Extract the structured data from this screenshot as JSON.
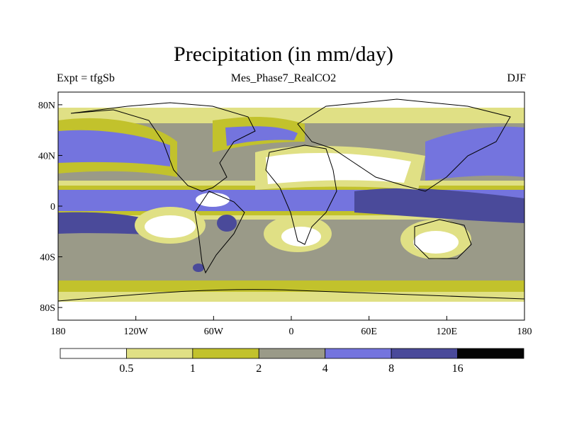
{
  "title": "Precipitation (in mm/day)",
  "left_subtitle": "Expt = tfgSb",
  "center_subtitle": "Mes_Phase7_RealCO2",
  "right_subtitle": "DJF",
  "colors": {
    "c0": "#ffffff",
    "c1": "#e0e085",
    "c2": "#c2c22c",
    "c3": "#9a9a88",
    "c4": "#7474de",
    "c5": "#4a4a9a",
    "c6": "#050505"
  },
  "map": {
    "lon_range": [
      -180,
      180
    ],
    "lat_range": [
      -90,
      90
    ],
    "y_ticks": [
      {
        "lat": 80,
        "label": "80N"
      },
      {
        "lat": 40,
        "label": "40N"
      },
      {
        "lat": 0,
        "label": "0"
      },
      {
        "lat": -40,
        "label": "40S"
      },
      {
        "lat": -80,
        "label": "80S"
      }
    ],
    "x_ticks": [
      {
        "lon": -180,
        "label": "180"
      },
      {
        "lon": -120,
        "label": "120W"
      },
      {
        "lon": -60,
        "label": "60W"
      },
      {
        "lon": 0,
        "label": "0"
      },
      {
        "lon": 60,
        "label": "60E"
      },
      {
        "lon": 120,
        "label": "120E"
      },
      {
        "lon": 180,
        "label": "180"
      }
    ]
  },
  "colorbar": {
    "labels": [
      "0.5",
      "1",
      "2",
      "4",
      "8",
      "16"
    ]
  }
}
